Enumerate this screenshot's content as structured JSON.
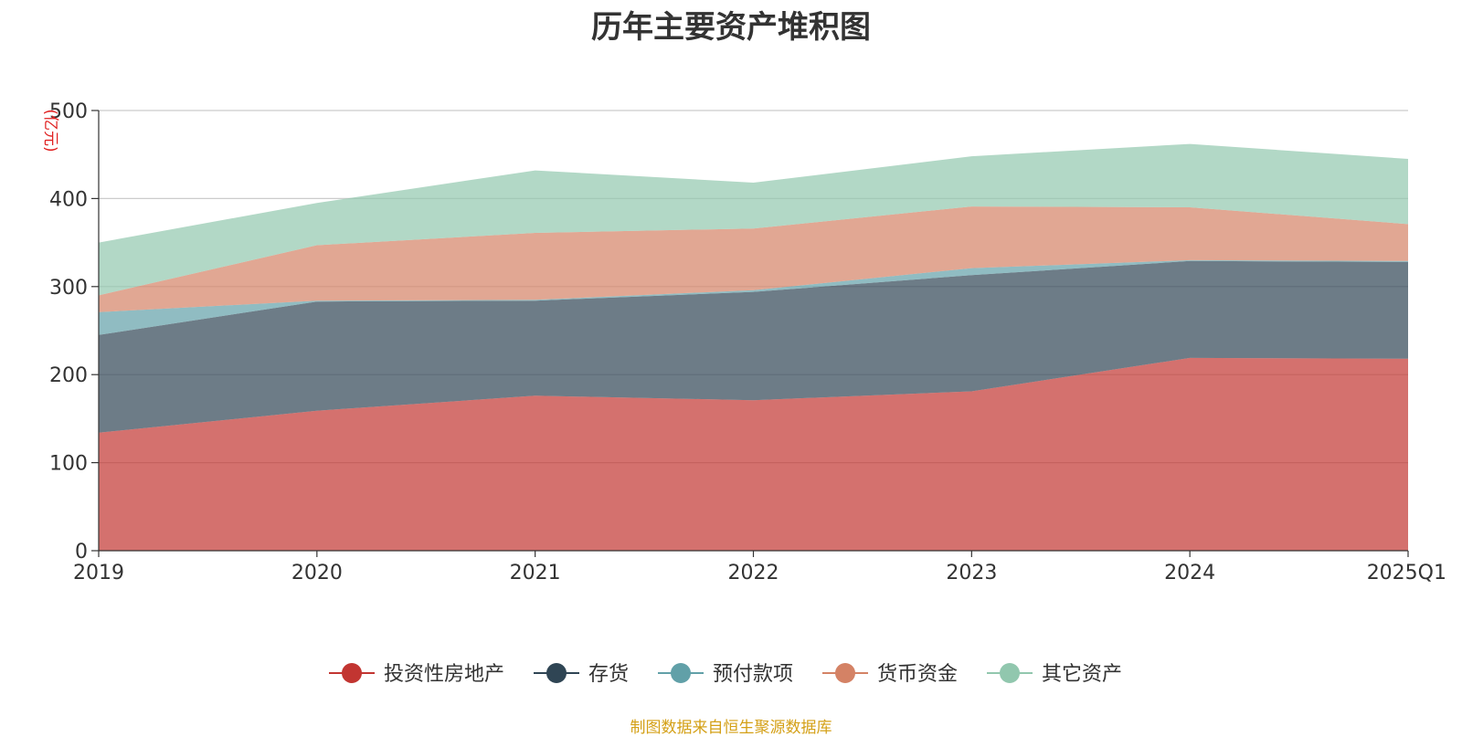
{
  "title": "历年主要资产堆积图",
  "source": "制图数据来自恒生聚源数据库",
  "chart_data": {
    "type": "area",
    "stacked": true,
    "title": "历年主要资产堆积图",
    "unit_label": "(亿元)",
    "categories": [
      "2019",
      "2020",
      "2021",
      "2022",
      "2023",
      "2024",
      "2025Q1"
    ],
    "ylim": [
      0,
      500
    ],
    "yticks": [
      0,
      100,
      200,
      300,
      400,
      500
    ],
    "grid": true,
    "legend_position": "bottom",
    "series": [
      {
        "name": "投资性房地产",
        "color": "#c23531",
        "values": [
          134,
          159,
          176,
          171,
          181,
          219,
          218
        ]
      },
      {
        "name": "存货",
        "color": "#2f4554",
        "values": [
          111,
          124,
          108,
          123,
          132,
          110,
          110
        ]
      },
      {
        "name": "预付款项",
        "color": "#61a0a8",
        "values": [
          26,
          1,
          1,
          2,
          8,
          1,
          1
        ]
      },
      {
        "name": "货币资金",
        "color": "#d48265",
        "values": [
          19,
          63,
          76,
          70,
          70,
          60,
          42
        ]
      },
      {
        "name": "其它资产",
        "color": "#91c7ae",
        "values": [
          60,
          48,
          71,
          52,
          57,
          72,
          74
        ]
      }
    ]
  }
}
